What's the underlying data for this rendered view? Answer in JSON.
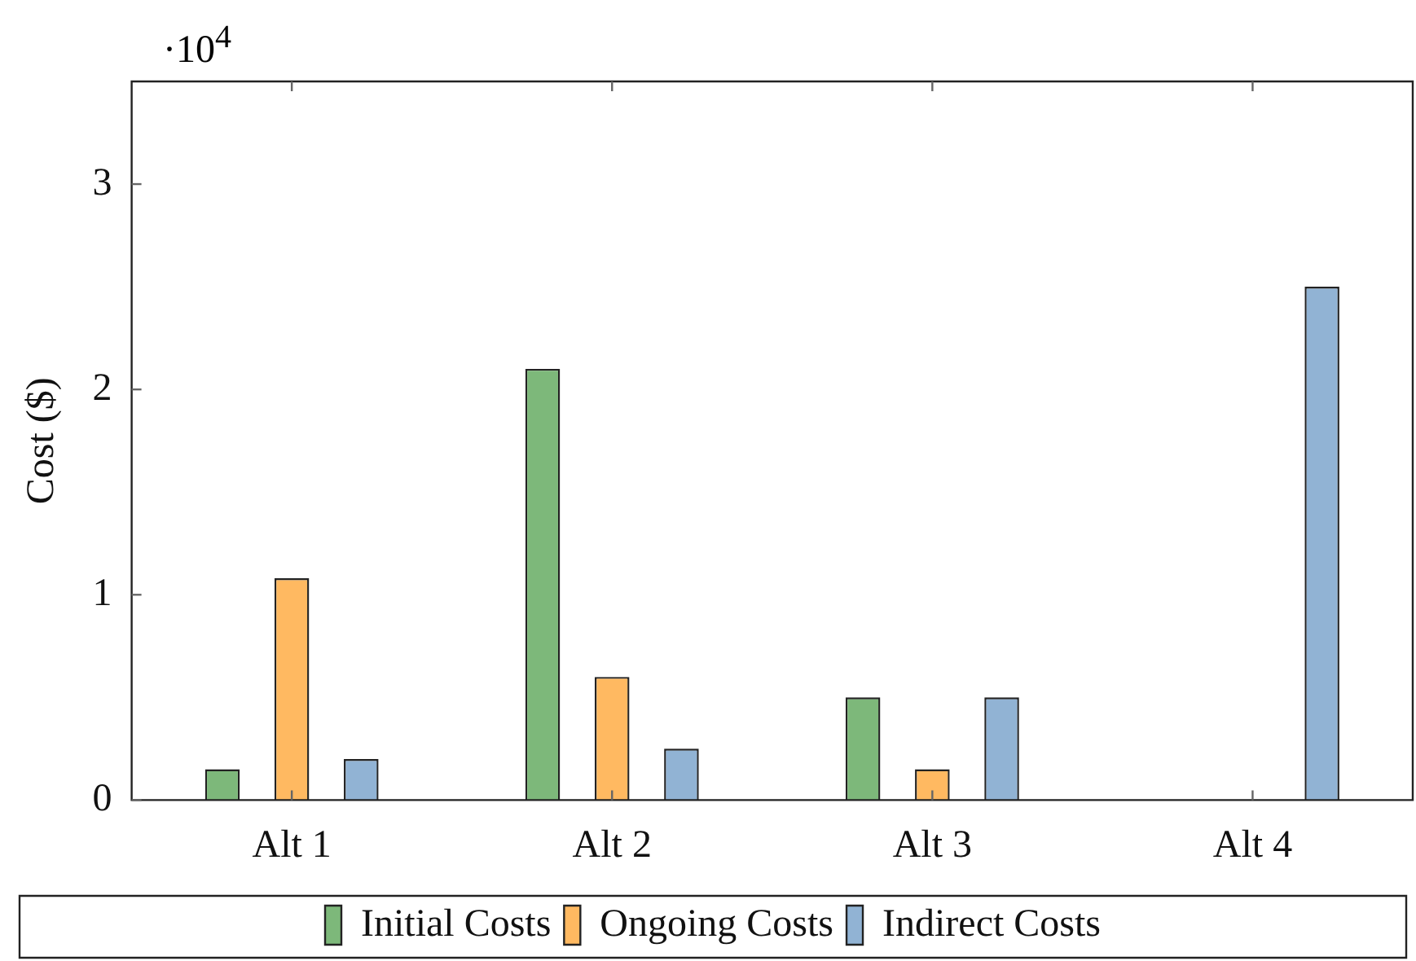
{
  "chart_data": {
    "type": "bar",
    "ylabel": "Cost ($)",
    "categories": [
      "Alt 1",
      "Alt 2",
      "Alt 3",
      "Alt 4"
    ],
    "series": [
      {
        "name": "Initial Costs",
        "color": "#7db87a",
        "values": [
          0.15,
          2.1,
          0.5,
          0
        ]
      },
      {
        "name": "Ongoing Costs",
        "color": "#ffb961",
        "values": [
          1.08,
          0.6,
          0.15,
          0
        ]
      },
      {
        "name": "Indirect Costs",
        "color": "#91b3d4",
        "values": [
          0.2,
          0.25,
          0.5,
          2.5
        ]
      }
    ],
    "ylim": [
      0,
      3.5
    ],
    "yticks": [
      0,
      1,
      2,
      3
    ],
    "annotations": [
      "·10$^{4}$"
    ],
    "grid": false,
    "legend": "bottom"
  }
}
